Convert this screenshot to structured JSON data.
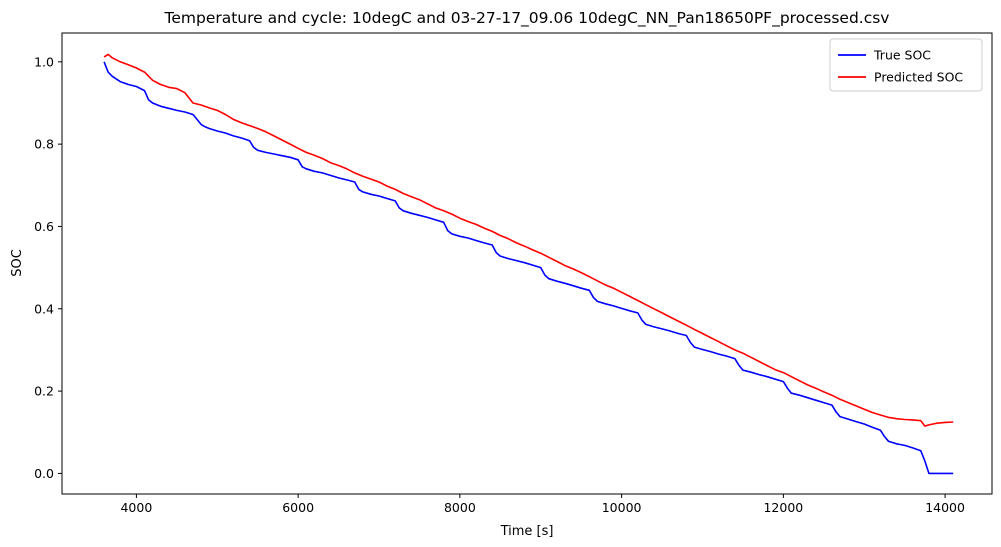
{
  "chart_data": {
    "type": "line",
    "title": "Temperature and cycle: 10degC and 03-27-17_09.06 10degC_NN_Pan18650PF_processed.csv",
    "xlabel": "Time [s]",
    "ylabel": "SOC",
    "xlim": [
      3080,
      14580
    ],
    "ylim": [
      -0.05,
      1.07
    ],
    "xticks": [
      4000,
      6000,
      8000,
      10000,
      12000,
      14000
    ],
    "xtick_labels": [
      "4000",
      "6000",
      "8000",
      "10000",
      "12000",
      "14000"
    ],
    "yticks": [
      0.0,
      0.2,
      0.4,
      0.6,
      0.8,
      1.0
    ],
    "ytick_labels": [
      "0.0",
      "0.2",
      "0.4",
      "0.6",
      "0.8",
      "1.0"
    ],
    "grid": false,
    "legend_position": "top-right",
    "series": [
      {
        "name": "True SOC",
        "color": "#0000ff",
        "x": [
          3600,
          3650,
          3700,
          3800,
          3900,
          4000,
          4100,
          4150,
          4200,
          4300,
          4400,
          4500,
          4600,
          4700,
          4800,
          4850,
          4900,
          5000,
          5100,
          5200,
          5300,
          5400,
          5450,
          5500,
          5600,
          5700,
          5800,
          5900,
          6000,
          6050,
          6100,
          6200,
          6300,
          6400,
          6500,
          6600,
          6700,
          6750,
          6800,
          6900,
          7000,
          7100,
          7200,
          7250,
          7300,
          7400,
          7500,
          7600,
          7700,
          7800,
          7850,
          7900,
          8000,
          8100,
          8200,
          8300,
          8400,
          8450,
          8500,
          8600,
          8700,
          8800,
          8900,
          9000,
          9050,
          9100,
          9200,
          9300,
          9400,
          9500,
          9600,
          9650,
          9700,
          9800,
          9900,
          10000,
          10100,
          10200,
          10250,
          10300,
          10400,
          10500,
          10600,
          10700,
          10800,
          10850,
          10900,
          11000,
          11100,
          11200,
          11300,
          11400,
          11450,
          11500,
          11600,
          11700,
          11800,
          11900,
          12000,
          12050,
          12100,
          12200,
          12300,
          12400,
          12500,
          12600,
          12650,
          12700,
          12800,
          12900,
          13000,
          13100,
          13200,
          13250,
          13300,
          13400,
          13500,
          13600,
          13700,
          13750,
          13800,
          13900,
          14000,
          14100
        ],
        "y": [
          1.0,
          0.975,
          0.965,
          0.952,
          0.945,
          0.94,
          0.93,
          0.908,
          0.9,
          0.892,
          0.887,
          0.882,
          0.878,
          0.872,
          0.848,
          0.842,
          0.838,
          0.832,
          0.827,
          0.82,
          0.815,
          0.808,
          0.792,
          0.785,
          0.78,
          0.776,
          0.772,
          0.768,
          0.762,
          0.745,
          0.74,
          0.734,
          0.73,
          0.724,
          0.718,
          0.713,
          0.708,
          0.69,
          0.684,
          0.678,
          0.674,
          0.668,
          0.662,
          0.645,
          0.638,
          0.632,
          0.627,
          0.622,
          0.616,
          0.61,
          0.59,
          0.582,
          0.576,
          0.572,
          0.566,
          0.56,
          0.555,
          0.536,
          0.528,
          0.522,
          0.517,
          0.512,
          0.506,
          0.5,
          0.482,
          0.473,
          0.467,
          0.462,
          0.456,
          0.45,
          0.445,
          0.428,
          0.418,
          0.412,
          0.407,
          0.401,
          0.395,
          0.39,
          0.373,
          0.362,
          0.356,
          0.351,
          0.346,
          0.34,
          0.335,
          0.318,
          0.307,
          0.301,
          0.296,
          0.29,
          0.285,
          0.279,
          0.263,
          0.251,
          0.246,
          0.24,
          0.235,
          0.229,
          0.223,
          0.207,
          0.195,
          0.19,
          0.184,
          0.178,
          0.172,
          0.166,
          0.15,
          0.138,
          0.132,
          0.126,
          0.12,
          0.112,
          0.105,
          0.09,
          0.078,
          0.072,
          0.068,
          0.062,
          0.055,
          0.03,
          0.0,
          0.0,
          0.0,
          0.0
        ]
      },
      {
        "name": "Predicted SOC",
        "color": "#ff0000",
        "x": [
          3600,
          3650,
          3700,
          3800,
          3900,
          4000,
          4100,
          4200,
          4300,
          4400,
          4500,
          4600,
          4700,
          4800,
          4900,
          5000,
          5100,
          5200,
          5300,
          5400,
          5500,
          5600,
          5700,
          5800,
          5900,
          6000,
          6100,
          6200,
          6300,
          6400,
          6500,
          6600,
          6700,
          6800,
          6900,
          7000,
          7100,
          7200,
          7300,
          7400,
          7500,
          7600,
          7700,
          7800,
          7900,
          8000,
          8100,
          8200,
          8300,
          8400,
          8500,
          8600,
          8700,
          8800,
          8900,
          9000,
          9100,
          9200,
          9300,
          9400,
          9500,
          9600,
          9700,
          9800,
          9900,
          10000,
          10100,
          10200,
          10300,
          10400,
          10500,
          10600,
          10700,
          10800,
          10900,
          11000,
          11100,
          11200,
          11300,
          11400,
          11500,
          11600,
          11700,
          11800,
          11900,
          12000,
          12100,
          12200,
          12300,
          12400,
          12500,
          12600,
          12700,
          12800,
          12900,
          13000,
          13100,
          13200,
          13300,
          13400,
          13500,
          13600,
          13700,
          13750,
          13800,
          13850,
          13900,
          14000,
          14100
        ],
        "y": [
          1.012,
          1.018,
          1.01,
          1.0,
          0.993,
          0.985,
          0.975,
          0.955,
          0.945,
          0.938,
          0.935,
          0.925,
          0.9,
          0.895,
          0.888,
          0.882,
          0.872,
          0.86,
          0.852,
          0.845,
          0.838,
          0.83,
          0.82,
          0.81,
          0.8,
          0.79,
          0.78,
          0.773,
          0.765,
          0.755,
          0.748,
          0.74,
          0.73,
          0.722,
          0.715,
          0.708,
          0.698,
          0.69,
          0.68,
          0.672,
          0.665,
          0.655,
          0.645,
          0.638,
          0.63,
          0.62,
          0.612,
          0.605,
          0.596,
          0.588,
          0.578,
          0.57,
          0.56,
          0.552,
          0.543,
          0.535,
          0.525,
          0.515,
          0.505,
          0.497,
          0.488,
          0.478,
          0.468,
          0.458,
          0.45,
          0.44,
          0.43,
          0.42,
          0.41,
          0.4,
          0.39,
          0.38,
          0.37,
          0.36,
          0.35,
          0.34,
          0.33,
          0.32,
          0.31,
          0.3,
          0.292,
          0.282,
          0.272,
          0.262,
          0.252,
          0.245,
          0.235,
          0.225,
          0.215,
          0.207,
          0.198,
          0.19,
          0.18,
          0.172,
          0.164,
          0.156,
          0.148,
          0.142,
          0.136,
          0.133,
          0.131,
          0.13,
          0.128,
          0.115,
          0.118,
          0.12,
          0.122,
          0.124,
          0.125
        ]
      }
    ]
  }
}
